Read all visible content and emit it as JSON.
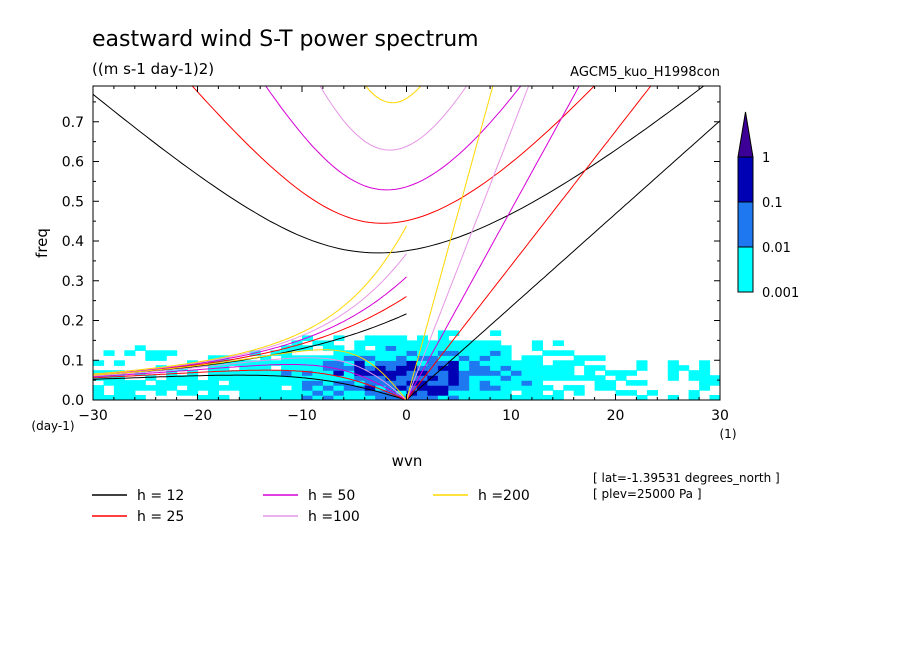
{
  "chart_data": {
    "type": "heatmap",
    "title": "eastward wind S-T power spectrum",
    "subtitle": "((m s-1 day-1)2)",
    "model_label": "AGCM5_kuo_H1998con",
    "xlabel": "wvn",
    "ylabel": "freq",
    "x_unit": "(1)",
    "y_unit": "(day-1)",
    "xlim": [
      -30,
      30
    ],
    "ylim": [
      0,
      0.79
    ],
    "x_ticks": [
      -30,
      -20,
      -10,
      0,
      10,
      20,
      30
    ],
    "y_ticks": [
      0.0,
      0.1,
      0.2,
      0.3,
      0.4,
      0.5,
      0.6,
      0.7
    ],
    "grid": false,
    "colorbar": {
      "levels": [
        "0.001",
        "0.01",
        "0.1",
        "1"
      ],
      "colors": [
        "#00ffff",
        "#1e78f0",
        "#0000b4",
        "#3c0096"
      ]
    },
    "dispersion_curves": [
      {
        "name": "h = 12",
        "h": 12,
        "color": "#000000"
      },
      {
        "name": "h = 25",
        "h": 25,
        "color": "#ff0000"
      },
      {
        "name": "h = 50",
        "h": 50,
        "color": "#d700d7"
      },
      {
        "name": "h =100",
        "h": 100,
        "color": "#e696e6"
      },
      {
        "name": "h =200",
        "h": 200,
        "color": "#ffd700"
      }
    ],
    "info": [
      "[ lat=-1.39531 degrees_north ]",
      "[ plev=25000 Pa ]"
    ]
  }
}
